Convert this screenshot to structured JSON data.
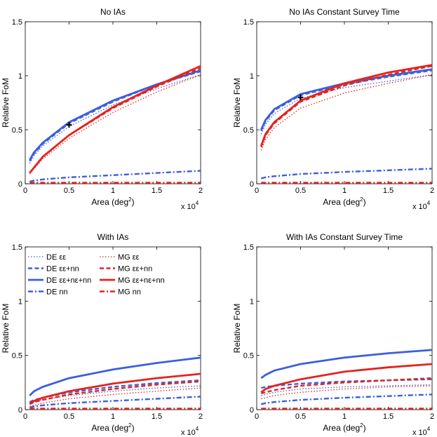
{
  "figure": {
    "legend_location": "top-left of bottom-left panel"
  },
  "legend": {
    "de_ee": "DE εε",
    "de_ee_nn": "DE εε+nn",
    "de_ee_ne_nn": "DE εε+nε+nn",
    "de_nn": "DE nn",
    "mg_ee": "MG εε",
    "mg_ee_nn": "MG εε+nn",
    "mg_ee_ne_nn": "MG εε+nε+nn",
    "mg_nn": "MG nn"
  },
  "colors": {
    "de": "#3a5fe0",
    "mg": "#e4231f",
    "marker": "#000000"
  },
  "chart_data": [
    {
      "type": "line",
      "title": "No IAs",
      "xlabel": "Area (deg",
      "xlabel_sup": "2",
      "xlabel_end": ")",
      "ylabel": "Relative FoM",
      "x_multiplier_label": "x 10",
      "x_multiplier_exp": "4",
      "xlim": [
        0,
        2
      ],
      "ylim": [
        0,
        1.5
      ],
      "xticks": [
        "0",
        "0.5",
        "1",
        "1.5",
        "2"
      ],
      "yticks": [
        "0",
        "0.5",
        "1",
        "1.5"
      ],
      "x": [
        0.05,
        0.1,
        0.2,
        0.5,
        1.0,
        1.5,
        2.0
      ],
      "marker": {
        "x": 0.5,
        "y": 0.545
      },
      "series": [
        {
          "key": "de_ee",
          "values": [
            0.19,
            0.26,
            0.35,
            0.53,
            0.73,
            0.88,
            1.01
          ]
        },
        {
          "key": "de_ee_nn",
          "values": [
            0.21,
            0.28,
            0.37,
            0.56,
            0.76,
            0.92,
            1.04
          ]
        },
        {
          "key": "de_ee_ne_nn",
          "values": [
            0.22,
            0.29,
            0.38,
            0.57,
            0.77,
            0.92,
            1.05
          ]
        },
        {
          "key": "de_nn",
          "values": [
            0.02,
            0.03,
            0.04,
            0.06,
            0.08,
            0.1,
            0.12
          ]
        },
        {
          "key": "mg_ee",
          "values": [
            0.09,
            0.14,
            0.23,
            0.42,
            0.66,
            0.85,
            1.01
          ]
        },
        {
          "key": "mg_ee_nn",
          "values": [
            0.1,
            0.15,
            0.25,
            0.45,
            0.7,
            0.9,
            1.07
          ]
        },
        {
          "key": "mg_ee_ne_nn",
          "values": [
            0.1,
            0.15,
            0.25,
            0.45,
            0.71,
            0.91,
            1.09
          ]
        },
        {
          "key": "mg_nn",
          "values": [
            0.01,
            0.01,
            0.01,
            0.01,
            0.01,
            0.01,
            0.01
          ]
        }
      ]
    },
    {
      "type": "line",
      "title": "No IAs Constant Survey Time",
      "xlabel": "Area (deg",
      "xlabel_sup": "2",
      "xlabel_end": ")",
      "ylabel": "Relative FoM",
      "x_multiplier_label": "x 10",
      "x_multiplier_exp": "4",
      "xlim": [
        0,
        2
      ],
      "ylim": [
        0,
        1.5
      ],
      "xticks": [
        "0",
        "0.5",
        "1",
        "1.5",
        "2"
      ],
      "yticks": [
        "0",
        "0.5",
        "1",
        "1.5"
      ],
      "x": [
        0.05,
        0.1,
        0.2,
        0.5,
        1.0,
        1.5,
        2.0
      ],
      "marker": {
        "x": 0.5,
        "y": 0.8
      },
      "series": [
        {
          "key": "de_ee",
          "values": [
            0.46,
            0.55,
            0.65,
            0.79,
            0.89,
            0.95,
            1.01
          ]
        },
        {
          "key": "de_ee_nn",
          "values": [
            0.49,
            0.58,
            0.68,
            0.82,
            0.92,
            0.99,
            1.05
          ]
        },
        {
          "key": "de_ee_ne_nn",
          "values": [
            0.5,
            0.59,
            0.69,
            0.83,
            0.93,
            1.0,
            1.06
          ]
        },
        {
          "key": "de_nn",
          "values": [
            0.05,
            0.06,
            0.07,
            0.09,
            0.11,
            0.125,
            0.14
          ]
        },
        {
          "key": "mg_ee",
          "values": [
            0.31,
            0.41,
            0.52,
            0.7,
            0.84,
            0.93,
            1.01
          ]
        },
        {
          "key": "mg_ee_nn",
          "values": [
            0.34,
            0.45,
            0.56,
            0.76,
            0.91,
            1.01,
            1.09
          ]
        },
        {
          "key": "mg_ee_ne_nn",
          "values": [
            0.35,
            0.46,
            0.57,
            0.77,
            0.93,
            1.03,
            1.1
          ]
        },
        {
          "key": "mg_nn",
          "values": [
            0.01,
            0.01,
            0.01,
            0.01,
            0.01,
            0.01,
            0.01
          ]
        }
      ]
    },
    {
      "type": "line",
      "title": "With IAs",
      "xlabel": "Area (deg",
      "xlabel_sup": "2",
      "xlabel_end": ")",
      "ylabel": "Relative FoM",
      "x_multiplier_label": "x 10",
      "x_multiplier_exp": "4",
      "xlim": [
        0,
        2
      ],
      "ylim": [
        0,
        1.5
      ],
      "xticks": [
        "0",
        "0.5",
        "1",
        "1.5",
        "2"
      ],
      "yticks": [
        "0",
        "0.5",
        "1",
        "1.5"
      ],
      "x": [
        0.05,
        0.1,
        0.2,
        0.5,
        1.0,
        1.5,
        2.0
      ],
      "legend": true,
      "series": [
        {
          "key": "de_ee",
          "values": [
            0.05,
            0.07,
            0.09,
            0.13,
            0.17,
            0.2,
            0.22
          ]
        },
        {
          "key": "de_ee_nn",
          "values": [
            0.07,
            0.09,
            0.11,
            0.16,
            0.21,
            0.245,
            0.27
          ]
        },
        {
          "key": "de_ee_ne_nn",
          "values": [
            0.13,
            0.17,
            0.21,
            0.29,
            0.37,
            0.43,
            0.48
          ]
        },
        {
          "key": "de_nn",
          "values": [
            0.02,
            0.03,
            0.04,
            0.06,
            0.08,
            0.1,
            0.12
          ]
        },
        {
          "key": "mg_ee",
          "values": [
            0.03,
            0.04,
            0.06,
            0.1,
            0.14,
            0.17,
            0.2
          ]
        },
        {
          "key": "mg_ee_nn",
          "values": [
            0.05,
            0.07,
            0.09,
            0.14,
            0.19,
            0.23,
            0.26
          ]
        },
        {
          "key": "mg_ee_ne_nn",
          "values": [
            0.06,
            0.08,
            0.11,
            0.17,
            0.24,
            0.29,
            0.33
          ]
        },
        {
          "key": "mg_nn",
          "values": [
            0.01,
            0.01,
            0.01,
            0.01,
            0.01,
            0.01,
            0.01
          ]
        }
      ]
    },
    {
      "type": "line",
      "title": "With IAs Constant Survey Time",
      "xlabel": "Area (deg",
      "xlabel_sup": "2",
      "xlabel_end": ")",
      "ylabel": "Relative FoM",
      "x_multiplier_label": "x 10",
      "x_multiplier_exp": "4",
      "xlim": [
        0,
        2
      ],
      "ylim": [
        0,
        1.5
      ],
      "xticks": [
        "0",
        "0.5",
        "1",
        "1.5",
        "2"
      ],
      "yticks": [
        "0",
        "0.5",
        "1",
        "1.5"
      ],
      "x": [
        0.05,
        0.1,
        0.2,
        0.5,
        1.0,
        1.5,
        2.0
      ],
      "series": [
        {
          "key": "de_ee",
          "values": [
            0.13,
            0.14,
            0.16,
            0.19,
            0.21,
            0.22,
            0.23
          ]
        },
        {
          "key": "de_ee_nn",
          "values": [
            0.2,
            0.21,
            0.22,
            0.24,
            0.26,
            0.27,
            0.28
          ]
        },
        {
          "key": "de_ee_ne_nn",
          "values": [
            0.29,
            0.32,
            0.36,
            0.42,
            0.48,
            0.52,
            0.55
          ]
        },
        {
          "key": "de_nn",
          "values": [
            0.05,
            0.06,
            0.07,
            0.09,
            0.11,
            0.125,
            0.14
          ]
        },
        {
          "key": "mg_ee",
          "values": [
            0.1,
            0.11,
            0.13,
            0.16,
            0.19,
            0.21,
            0.22
          ]
        },
        {
          "key": "mg_ee_nn",
          "values": [
            0.15,
            0.16,
            0.18,
            0.22,
            0.25,
            0.27,
            0.29
          ]
        },
        {
          "key": "mg_ee_ne_nn",
          "values": [
            0.16,
            0.19,
            0.22,
            0.28,
            0.35,
            0.39,
            0.42
          ]
        },
        {
          "key": "mg_nn",
          "values": [
            0.01,
            0.01,
            0.01,
            0.01,
            0.01,
            0.01,
            0.01
          ]
        }
      ]
    }
  ]
}
